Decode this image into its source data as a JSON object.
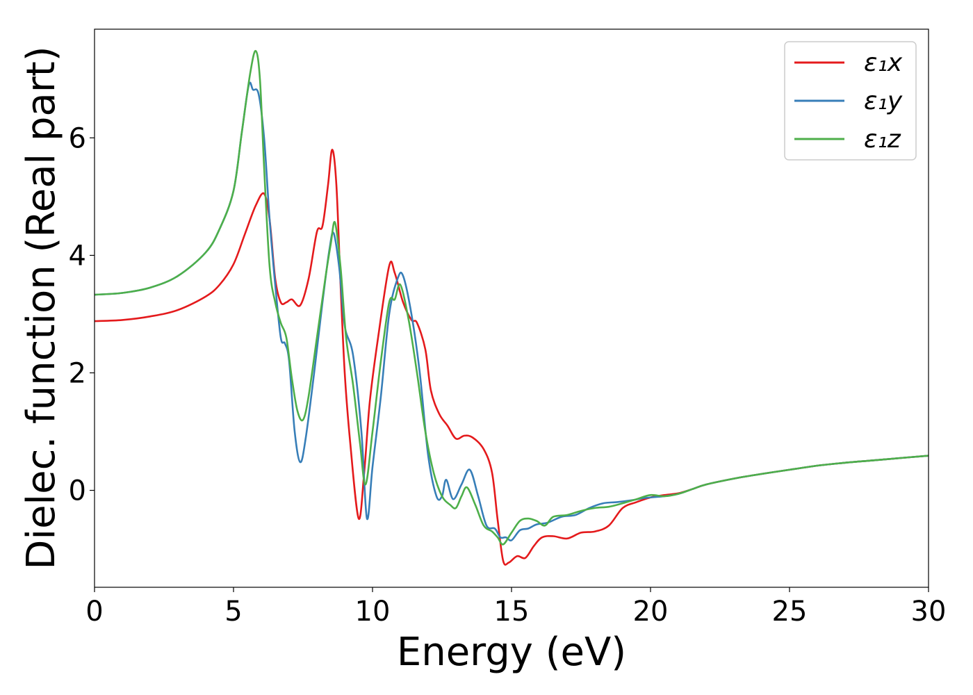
{
  "chart_data": {
    "type": "line",
    "xlabel": "Energy (eV)",
    "ylabel": "Dielec. function (Real part)",
    "xlim": [
      0,
      30
    ],
    "ylim": [
      -1.65,
      7.85
    ],
    "xticks": [
      0,
      5,
      10,
      15,
      20,
      25,
      30
    ],
    "yticks": [
      0,
      2,
      4,
      6
    ],
    "xtick_labels": [
      "0",
      "5",
      "10",
      "15",
      "20",
      "25",
      "30"
    ],
    "ytick_labels": [
      "0",
      "2",
      "4",
      "6"
    ],
    "grid": false,
    "legend_position": "top-right",
    "series": [
      {
        "name": "ε₁x",
        "color": "#e41a1c",
        "points": [
          [
            0,
            2.88
          ],
          [
            1,
            2.9
          ],
          [
            2,
            2.96
          ],
          [
            3,
            3.07
          ],
          [
            4,
            3.3
          ],
          [
            4.5,
            3.5
          ],
          [
            5,
            3.85
          ],
          [
            5.4,
            4.35
          ],
          [
            5.8,
            4.85
          ],
          [
            6.1,
            5.05
          ],
          [
            6.3,
            4.6
          ],
          [
            6.5,
            3.6
          ],
          [
            6.7,
            3.2
          ],
          [
            6.9,
            3.2
          ],
          [
            7.1,
            3.25
          ],
          [
            7.4,
            3.15
          ],
          [
            7.7,
            3.6
          ],
          [
            8.0,
            4.4
          ],
          [
            8.2,
            4.5
          ],
          [
            8.4,
            5.2
          ],
          [
            8.55,
            5.8
          ],
          [
            8.7,
            5.2
          ],
          [
            8.85,
            3.5
          ],
          [
            9.0,
            2.0
          ],
          [
            9.2,
            0.8
          ],
          [
            9.5,
            -0.48
          ],
          [
            9.7,
            0.3
          ],
          [
            9.9,
            1.5
          ],
          [
            10.2,
            2.6
          ],
          [
            10.6,
            3.82
          ],
          [
            10.8,
            3.7
          ],
          [
            11.1,
            3.2
          ],
          [
            11.4,
            2.9
          ],
          [
            11.6,
            2.85
          ],
          [
            11.9,
            2.4
          ],
          [
            12.1,
            1.7
          ],
          [
            12.4,
            1.3
          ],
          [
            12.7,
            1.1
          ],
          [
            13.0,
            0.88
          ],
          [
            13.3,
            0.93
          ],
          [
            13.6,
            0.9
          ],
          [
            14.0,
            0.7
          ],
          [
            14.3,
            0.3
          ],
          [
            14.5,
            -0.5
          ],
          [
            14.7,
            -1.2
          ],
          [
            14.9,
            -1.23
          ],
          [
            15.2,
            -1.12
          ],
          [
            15.5,
            -1.15
          ],
          [
            15.8,
            -0.95
          ],
          [
            16.1,
            -0.8
          ],
          [
            16.5,
            -0.78
          ],
          [
            17.0,
            -0.82
          ],
          [
            17.5,
            -0.72
          ],
          [
            18.0,
            -0.7
          ],
          [
            18.5,
            -0.6
          ],
          [
            19.0,
            -0.3
          ],
          [
            19.5,
            -0.2
          ],
          [
            20.0,
            -0.12
          ],
          [
            20.5,
            -0.08
          ],
          [
            21,
            -0.05
          ],
          [
            21.5,
            0.02
          ],
          [
            22,
            0.1
          ],
          [
            23,
            0.2
          ],
          [
            24,
            0.28
          ],
          [
            25,
            0.35
          ],
          [
            26,
            0.42
          ],
          [
            27,
            0.47
          ],
          [
            28,
            0.51
          ],
          [
            29,
            0.55
          ],
          [
            30,
            0.59
          ]
        ]
      },
      {
        "name": "ε₁y",
        "color": "#377eb8",
        "points": [
          [
            0,
            3.33
          ],
          [
            1,
            3.36
          ],
          [
            2,
            3.45
          ],
          [
            3,
            3.65
          ],
          [
            4,
            4.05
          ],
          [
            4.5,
            4.45
          ],
          [
            5,
            5.1
          ],
          [
            5.3,
            6.1
          ],
          [
            5.55,
            6.9
          ],
          [
            5.7,
            6.82
          ],
          [
            5.9,
            6.75
          ],
          [
            6.1,
            6.0
          ],
          [
            6.3,
            4.6
          ],
          [
            6.5,
            3.5
          ],
          [
            6.7,
            2.6
          ],
          [
            6.85,
            2.5
          ],
          [
            7.0,
            2.2
          ],
          [
            7.2,
            1.0
          ],
          [
            7.4,
            0.48
          ],
          [
            7.6,
            0.9
          ],
          [
            7.9,
            2.0
          ],
          [
            8.2,
            3.2
          ],
          [
            8.45,
            4.1
          ],
          [
            8.6,
            4.38
          ],
          [
            8.8,
            3.8
          ],
          [
            9.0,
            2.8
          ],
          [
            9.3,
            2.3
          ],
          [
            9.6,
            1.0
          ],
          [
            9.8,
            -0.48
          ],
          [
            10.0,
            0.4
          ],
          [
            10.3,
            1.6
          ],
          [
            10.6,
            3.0
          ],
          [
            10.9,
            3.6
          ],
          [
            11.1,
            3.65
          ],
          [
            11.4,
            3.0
          ],
          [
            11.7,
            2.0
          ],
          [
            12.0,
            0.6
          ],
          [
            12.3,
            -0.1
          ],
          [
            12.5,
            -0.1
          ],
          [
            12.65,
            0.18
          ],
          [
            12.9,
            -0.15
          ],
          [
            13.2,
            0.1
          ],
          [
            13.5,
            0.35
          ],
          [
            13.8,
            -0.1
          ],
          [
            14.1,
            -0.6
          ],
          [
            14.4,
            -0.65
          ],
          [
            14.6,
            -0.8
          ],
          [
            14.8,
            -0.8
          ],
          [
            15.0,
            -0.85
          ],
          [
            15.3,
            -0.68
          ],
          [
            15.6,
            -0.65
          ],
          [
            15.9,
            -0.58
          ],
          [
            16.3,
            -0.55
          ],
          [
            16.8,
            -0.45
          ],
          [
            17.3,
            -0.42
          ],
          [
            17.8,
            -0.3
          ],
          [
            18.3,
            -0.22
          ],
          [
            18.8,
            -0.2
          ],
          [
            19.3,
            -0.17
          ],
          [
            19.8,
            -0.13
          ],
          [
            20.5,
            -0.1
          ],
          [
            21,
            -0.06
          ],
          [
            21.5,
            0.02
          ],
          [
            22,
            0.1
          ],
          [
            23,
            0.2
          ],
          [
            24,
            0.28
          ],
          [
            25,
            0.35
          ],
          [
            26,
            0.42
          ],
          [
            27,
            0.47
          ],
          [
            28,
            0.51
          ],
          [
            29,
            0.55
          ],
          [
            30,
            0.59
          ]
        ]
      },
      {
        "name": "ε₁z",
        "color": "#4daf4a",
        "points": [
          [
            0,
            3.33
          ],
          [
            1,
            3.36
          ],
          [
            2,
            3.45
          ],
          [
            3,
            3.65
          ],
          [
            4,
            4.05
          ],
          [
            4.5,
            4.45
          ],
          [
            5,
            5.1
          ],
          [
            5.3,
            6.1
          ],
          [
            5.6,
            7.1
          ],
          [
            5.8,
            7.48
          ],
          [
            5.95,
            7.0
          ],
          [
            6.1,
            5.5
          ],
          [
            6.3,
            3.8
          ],
          [
            6.5,
            3.2
          ],
          [
            6.7,
            2.85
          ],
          [
            6.9,
            2.6
          ],
          [
            7.1,
            1.9
          ],
          [
            7.3,
            1.35
          ],
          [
            7.5,
            1.2
          ],
          [
            7.7,
            1.6
          ],
          [
            8.0,
            2.6
          ],
          [
            8.3,
            3.6
          ],
          [
            8.5,
            4.2
          ],
          [
            8.65,
            4.56
          ],
          [
            8.85,
            3.8
          ],
          [
            9.05,
            2.6
          ],
          [
            9.3,
            1.8
          ],
          [
            9.55,
            0.8
          ],
          [
            9.75,
            0.1
          ],
          [
            10.0,
            1.0
          ],
          [
            10.3,
            2.2
          ],
          [
            10.6,
            3.2
          ],
          [
            10.8,
            3.25
          ],
          [
            11.0,
            3.5
          ],
          [
            11.3,
            2.9
          ],
          [
            11.6,
            2.0
          ],
          [
            11.9,
            1.0
          ],
          [
            12.2,
            0.3
          ],
          [
            12.5,
            -0.1
          ],
          [
            12.8,
            -0.25
          ],
          [
            13.0,
            -0.3
          ],
          [
            13.2,
            -0.1
          ],
          [
            13.4,
            0.05
          ],
          [
            13.7,
            -0.25
          ],
          [
            14.0,
            -0.6
          ],
          [
            14.3,
            -0.7
          ],
          [
            14.5,
            -0.8
          ],
          [
            14.7,
            -0.92
          ],
          [
            15.0,
            -0.72
          ],
          [
            15.3,
            -0.52
          ],
          [
            15.6,
            -0.48
          ],
          [
            15.9,
            -0.52
          ],
          [
            16.2,
            -0.6
          ],
          [
            16.5,
            -0.45
          ],
          [
            17.0,
            -0.42
          ],
          [
            17.5,
            -0.35
          ],
          [
            18.0,
            -0.3
          ],
          [
            18.5,
            -0.28
          ],
          [
            19.0,
            -0.22
          ],
          [
            19.5,
            -0.15
          ],
          [
            20.0,
            -0.08
          ],
          [
            20.5,
            -0.1
          ],
          [
            21,
            -0.06
          ],
          [
            21.5,
            0.02
          ],
          [
            22,
            0.1
          ],
          [
            23,
            0.2
          ],
          [
            24,
            0.28
          ],
          [
            25,
            0.35
          ],
          [
            26,
            0.42
          ],
          [
            27,
            0.47
          ],
          [
            28,
            0.51
          ],
          [
            29,
            0.55
          ],
          [
            30,
            0.59
          ]
        ]
      }
    ]
  }
}
